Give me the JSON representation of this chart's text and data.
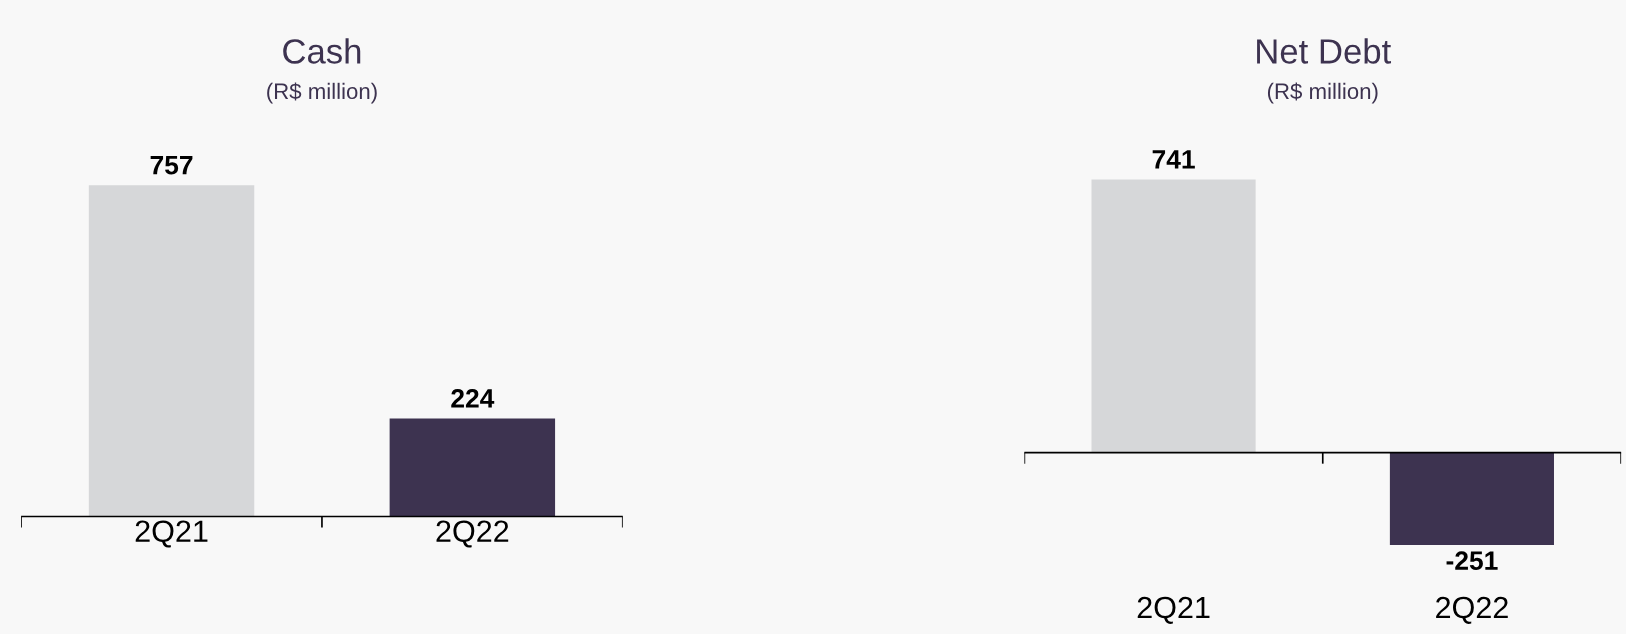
{
  "chart_data": [
    {
      "type": "bar",
      "title": "Cash",
      "subtitle": "(R$ million)",
      "categories": [
        "2Q21",
        "2Q22"
      ],
      "values": [
        757,
        224
      ],
      "colors": [
        "#d6d7d9",
        "#3d3350"
      ],
      "data_labels": true
    },
    {
      "type": "bar",
      "title": "Net Debt",
      "subtitle": "(R$ million)",
      "categories": [
        "2Q21",
        "2Q22"
      ],
      "values": [
        741,
        -251
      ],
      "colors": [
        "#d6d7d9",
        "#3d3350"
      ],
      "data_labels": true
    }
  ]
}
